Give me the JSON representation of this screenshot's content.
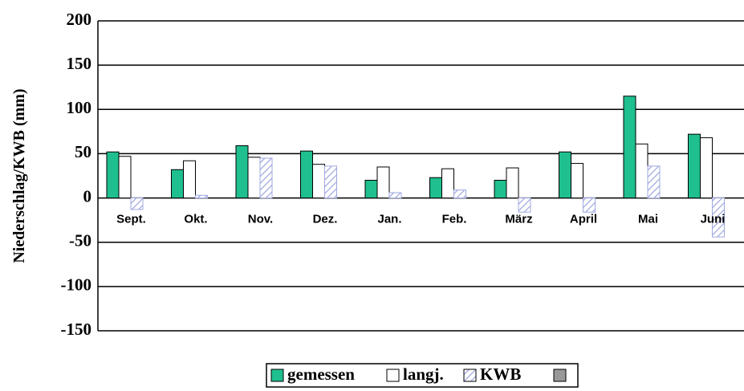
{
  "chart_data": {
    "type": "bar",
    "ylabel": "Niederschlag/KWB (mm)",
    "categories": [
      "Sept.",
      "Okt.",
      "Nov.",
      "Dez.",
      "Jan.",
      "Feb.",
      "März",
      "April",
      "Mai",
      "Juni"
    ],
    "series": [
      {
        "name": "gemessen",
        "color": "#1fbf8f",
        "values": [
          52,
          32,
          59,
          53,
          20,
          23,
          20,
          52,
          115,
          72
        ]
      },
      {
        "name": "langj.",
        "color": "#ffffff",
        "values": [
          47,
          42,
          46,
          38,
          35,
          33,
          34,
          39,
          61,
          68
        ]
      },
      {
        "name": "KWB",
        "color": "hatch",
        "values": [
          -13,
          3,
          45,
          36,
          6,
          9,
          -16,
          -16,
          36,
          -44
        ]
      }
    ],
    "ylim": [
      -150,
      200
    ],
    "yticks": [
      -150,
      -100,
      -50,
      0,
      50,
      100,
      150,
      200
    ],
    "grid": true
  }
}
